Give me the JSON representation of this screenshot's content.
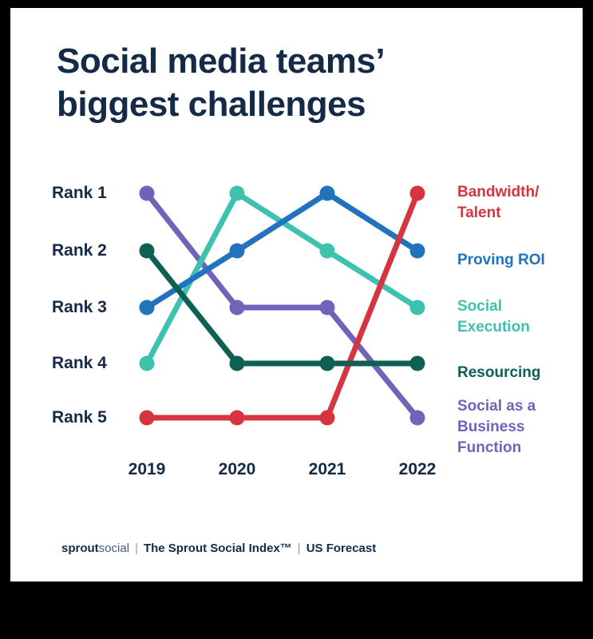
{
  "title": {
    "line1": "Social media teams’",
    "line2": "biggest challenges"
  },
  "chart_data": {
    "type": "line",
    "subtype": "bump-rank-chart",
    "title": "Social media teams’ biggest challenges",
    "x": [
      "2019",
      "2020",
      "2021",
      "2022"
    ],
    "rank_labels": [
      "Rank 1",
      "Rank 2",
      "Rank 3",
      "Rank 4",
      "Rank 5"
    ],
    "y_axis": "rank (1 = biggest challenge, 5 = smallest)",
    "legend_position": "right",
    "grid": false,
    "series": [
      {
        "name": "Social as a Business Function",
        "legend": "Social as a\nBusiness\nFunction",
        "color": "#7063B9",
        "ranks": [
          1,
          3,
          3,
          5
        ]
      },
      {
        "name": "Social Execution",
        "legend": "Social\nExecution",
        "color": "#3EC1AF",
        "ranks": [
          4,
          1,
          2,
          3
        ]
      },
      {
        "name": "Proving ROI",
        "legend": "Proving ROI",
        "color": "#2173BD",
        "ranks": [
          3,
          2,
          1,
          2
        ]
      },
      {
        "name": "Bandwidth/Talent",
        "legend": "Bandwidth/\nTalent",
        "color": "#D6353F",
        "ranks": [
          5,
          5,
          5,
          1
        ]
      },
      {
        "name": "Resourcing",
        "legend": "Resourcing",
        "color": "#0E6052",
        "ranks": [
          2,
          4,
          4,
          4
        ]
      }
    ]
  },
  "footer": {
    "brand_bold": "sprout",
    "brand_light": "social",
    "separator": "|",
    "source": "The Sprout Social Index™",
    "note": "US Forecast"
  }
}
